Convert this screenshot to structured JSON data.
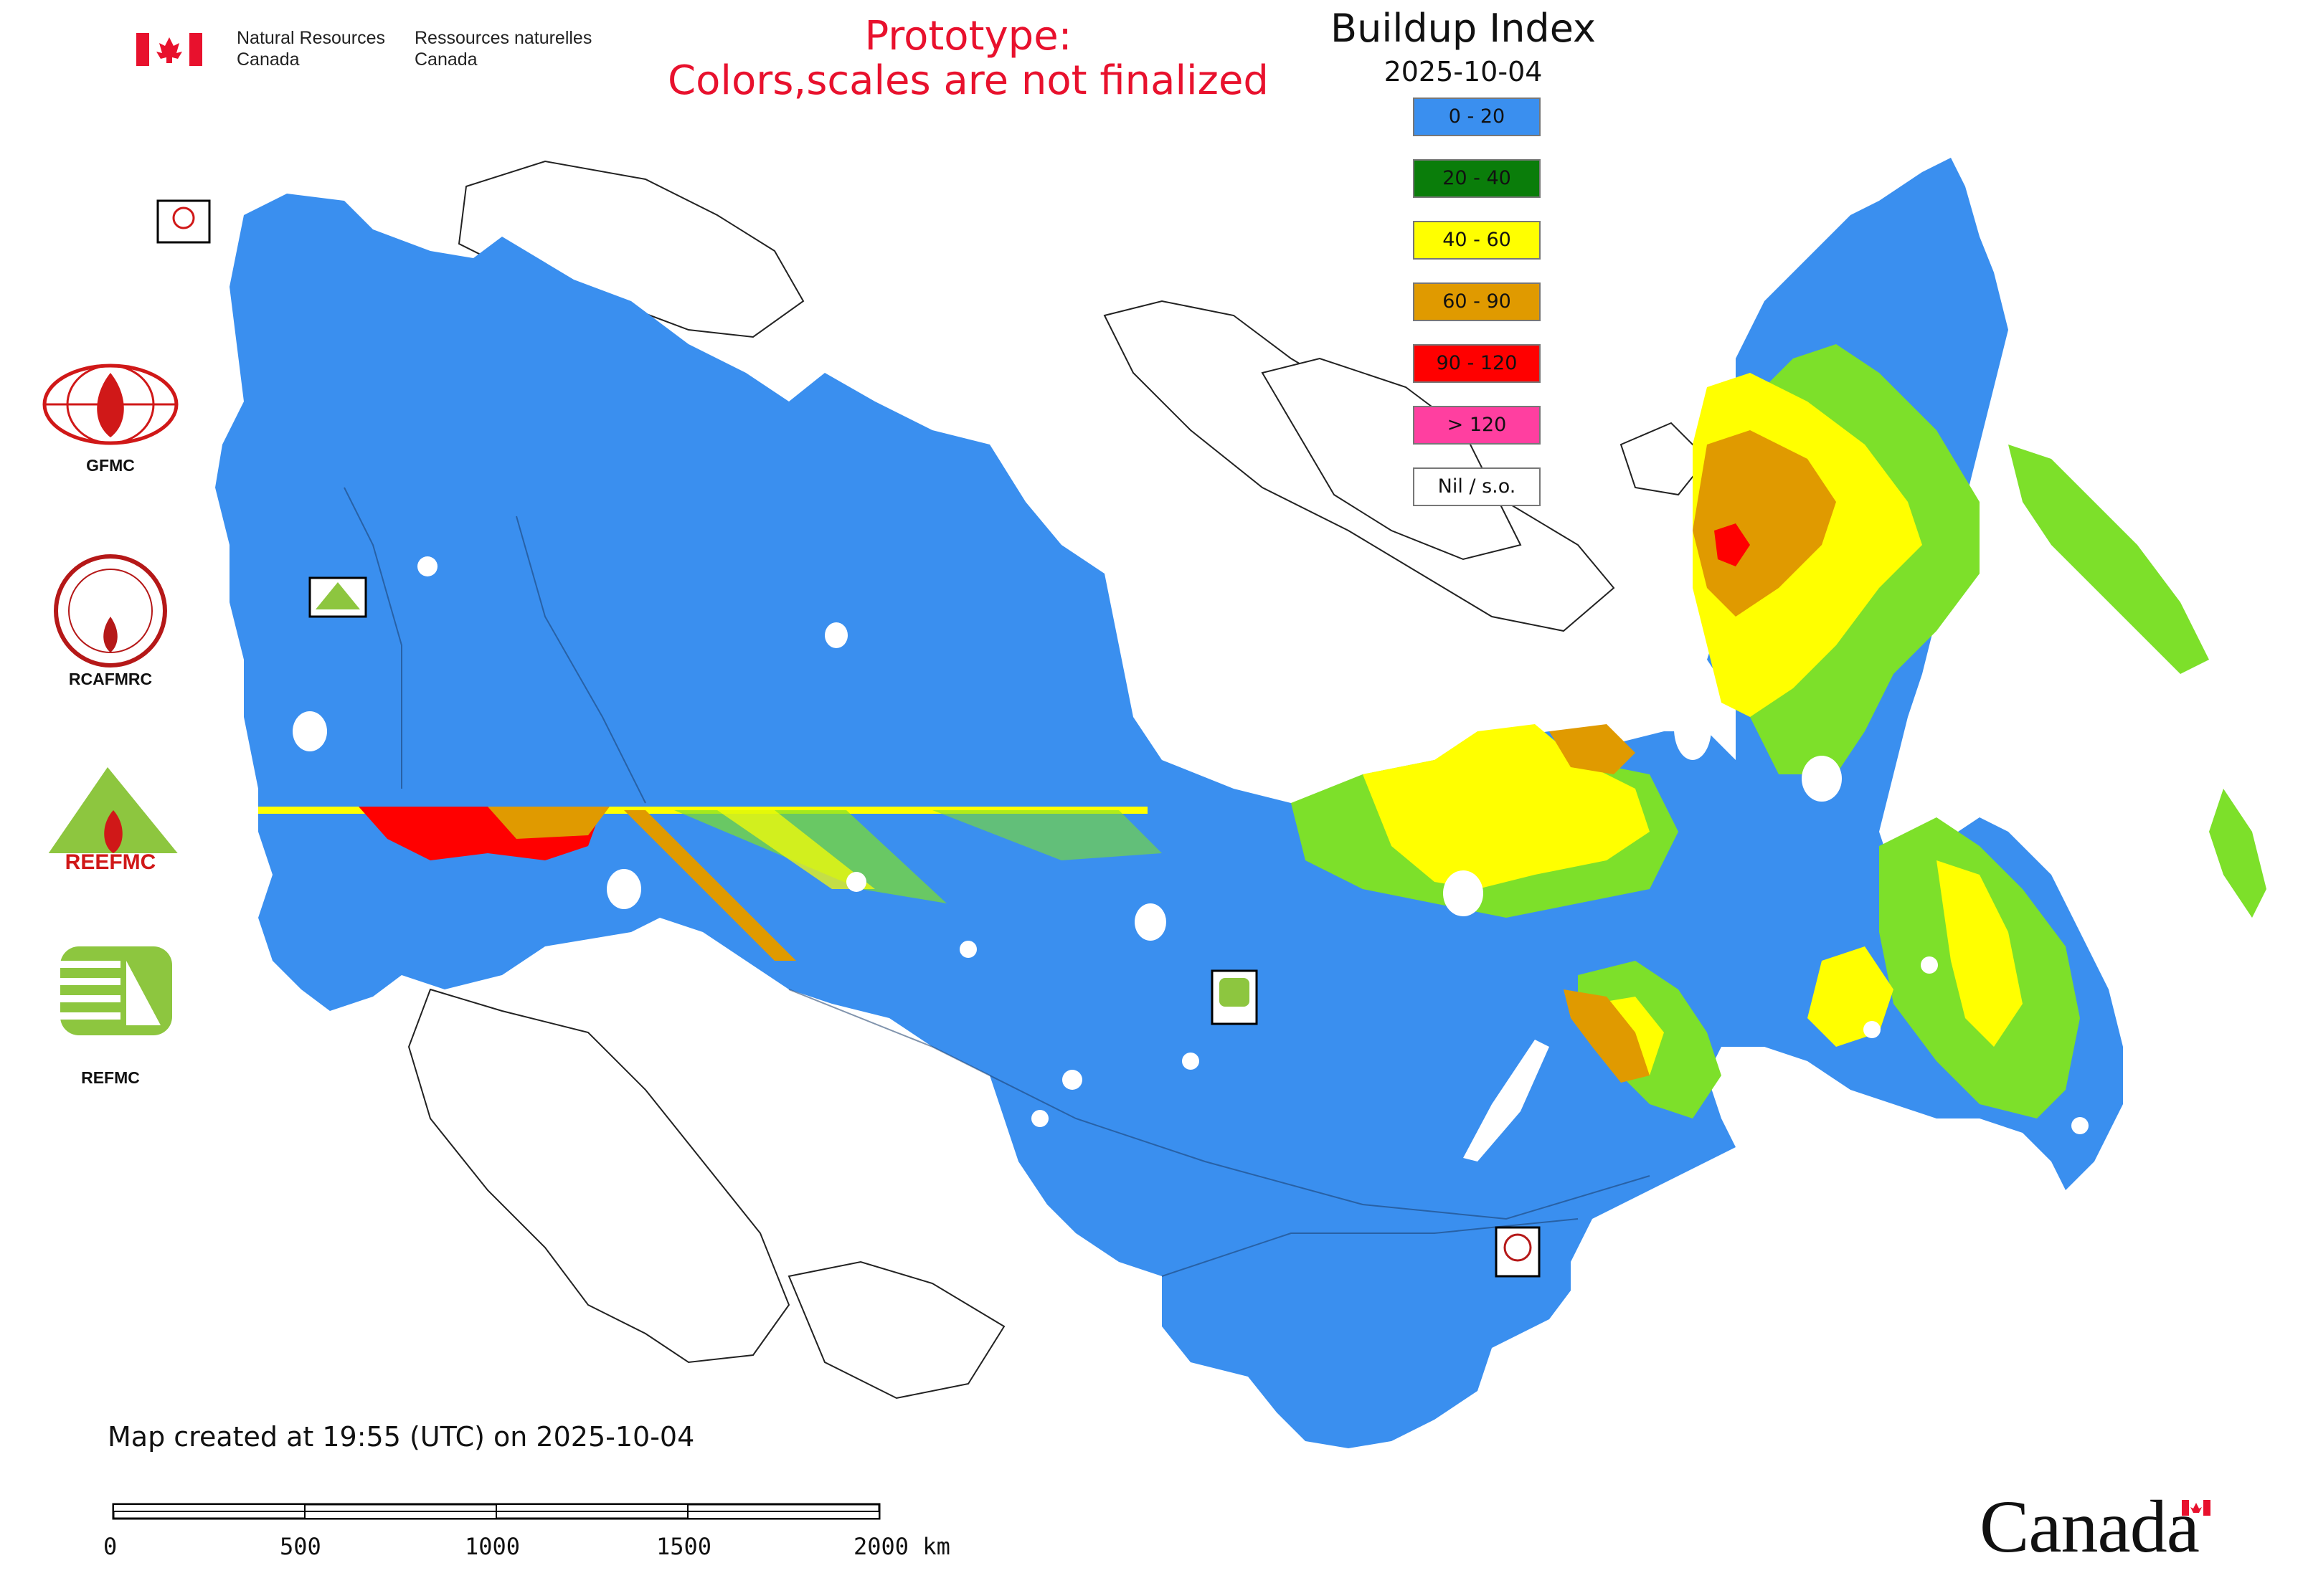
{
  "header": {
    "agency_en_line1": "Natural Resources",
    "agency_en_line2": "Canada",
    "agency_fr_line1": "Ressources naturelles",
    "agency_fr_line2": "Canada",
    "prototype_line1": "Prototype:",
    "prototype_line2": "Colors,scales are not finalized"
  },
  "legend": {
    "title": "Buildup Index",
    "date": "2025-10-04",
    "items": [
      {
        "label": "0 - 20",
        "color": "#3a8fef"
      },
      {
        "label": "20 - 40",
        "color": "#0a7d0a"
      },
      {
        "label": "40 - 60",
        "color": "#ffff00"
      },
      {
        "label": "60 - 90",
        "color": "#e09a00"
      },
      {
        "label": "90 - 120",
        "color": "#ff0000"
      },
      {
        "label": "> 120",
        "color": "#ff3fa0"
      },
      {
        "label": "Nil / s.o.",
        "color": "#ffffff"
      }
    ]
  },
  "logos": [
    {
      "label": "GFMC",
      "icon": "gfmc-flame-globe-icon"
    },
    {
      "label": "RCAFMRC",
      "icon": "rcafmrc-seal-icon"
    },
    {
      "label": "REEFMC",
      "icon": "reefmc-triangle-icon"
    },
    {
      "label": "REFMC",
      "icon": "refmc-emblem-icon"
    }
  ],
  "map_badges": {
    "gfmc": "GFMC",
    "reefmc": "REEFMC",
    "refmc": "REFMC",
    "rcafmrc": "RCAFMRC"
  },
  "footer": {
    "created": "Map created at 19:55 (UTC) on 2025-10-04",
    "scale_ticks": [
      "0",
      "500",
      "1000",
      "1500",
      "2000 km"
    ],
    "wordmark": "Canada"
  },
  "colors": {
    "flag_red": "#e8112d",
    "prototype_red": "#e8112d",
    "nil_outline": "#222222"
  }
}
